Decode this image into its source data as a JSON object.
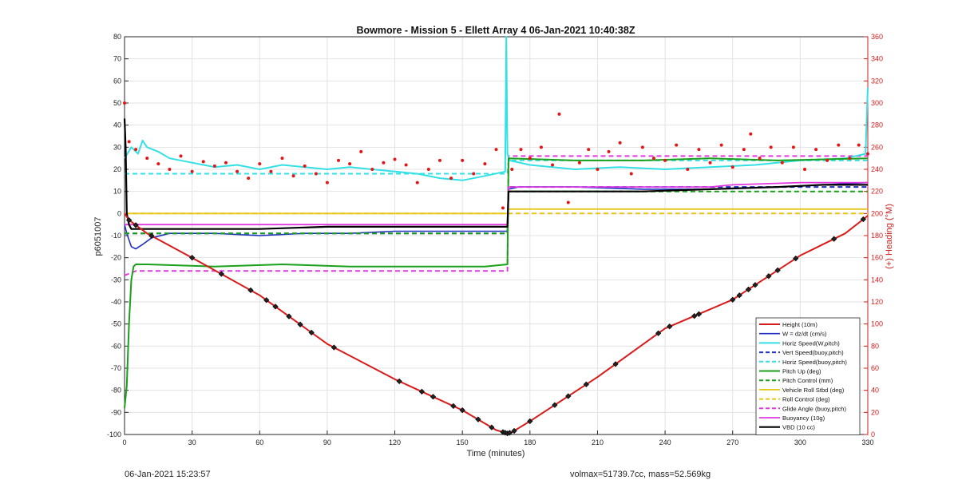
{
  "footer": {
    "left_timestamp": "06-Jan-2021 15:23:57",
    "right_info": "volmax=51739.7cc, mass=52.569kg"
  },
  "colors": {
    "height": "#d81b1b",
    "w": "#1f2fbf",
    "horiz": "#33e0e6",
    "vert_dash": "#1f2fbf",
    "horiz_dash": "#33e0e6",
    "pitch": "#1aa01a",
    "pitch_ctrl": "#1aa01a",
    "roll": "#e6c619",
    "roll_ctrl": "#e6c619",
    "glide": "#e238e2",
    "buoy": "#e238e2",
    "vbd": "#000000",
    "heading": "#e31616",
    "right_axis": "#d01c1c"
  },
  "chart_data": {
    "type": "line",
    "title": "Bowmore - Mission 5 - Ellett Array 4 06-Jan-2021 10:40:38Z",
    "xlabel": "Time (minutes)",
    "ylabel": "p6051007",
    "ylabel_right": "(+) Heading (°M)",
    "xlim": [
      0,
      330
    ],
    "ylim": [
      -100,
      80
    ],
    "ylim_right": [
      0,
      360
    ],
    "xticks": [
      "0",
      "30",
      "60",
      "90",
      "120",
      "150",
      "180",
      "210",
      "240",
      "270",
      "300",
      "330"
    ],
    "yticks": [
      "80",
      "70",
      "60",
      "50",
      "40",
      "30",
      "20",
      "10",
      "0",
      "-10",
      "-20",
      "-30",
      "-40",
      "-50",
      "-60",
      "-70",
      "-80",
      "-90",
      "-100"
    ],
    "yticks_right": [
      "360",
      "340",
      "320",
      "300",
      "280",
      "260",
      "240",
      "220",
      "200",
      "180",
      "160",
      "140",
      "120",
      "100",
      "80",
      "60",
      "40",
      "20",
      "0"
    ],
    "grid": true,
    "legend_position": "bottom-right",
    "legend": [
      "Height (10m)",
      "W = dz/dt (cm/s)",
      "Horiz Speed(W,pitch)",
      "Vert Speed(buoy,pitch)",
      "Horiz Speed(buoy,pitch)",
      "Pitch Up (deg)",
      "Pitch Control (mm)",
      "Vehicle Roll Stbd (deg)",
      "Roll Control (deg)",
      "Glide Angle (buoy,pitch)",
      "Buoyancy (10g)",
      "VBD (10 cc)"
    ],
    "series": [
      {
        "name": "Height (10m)",
        "x": [
          0,
          2,
          10,
          30,
          60,
          90,
          120,
          150,
          165,
          170,
          172,
          180,
          210,
          240,
          270,
          300,
          320,
          330
        ],
        "values": [
          0,
          -3,
          -9,
          -20,
          -37,
          -59,
          -75,
          -89,
          -98,
          -99.5,
          -99,
          -94,
          -74,
          -52,
          -39,
          -19,
          -9,
          -1
        ]
      },
      {
        "name": "W = dz/dt (cm/s)",
        "x": [
          0,
          1,
          3,
          5,
          8,
          12,
          20,
          40,
          60,
          80,
          100,
          120,
          140,
          160,
          170,
          170.5,
          175,
          200,
          230,
          260,
          290,
          310,
          330
        ],
        "values": [
          -5,
          -9,
          -15,
          -16,
          -14,
          -11,
          -9,
          -9,
          -10,
          -9,
          -9,
          -8,
          -8,
          -8,
          -8,
          11,
          12,
          12,
          11,
          11,
          12,
          13,
          14
        ]
      },
      {
        "name": "Horiz Speed(W,pitch)",
        "x": [
          0,
          3,
          6,
          8,
          10,
          15,
          20,
          30,
          40,
          50,
          60,
          70,
          80,
          90,
          100,
          110,
          120,
          130,
          140,
          150,
          160,
          169,
          169.5,
          170,
          171,
          180,
          190,
          200,
          220,
          240,
          260,
          280,
          300,
          320,
          329,
          330
        ],
        "values": [
          25,
          30,
          27,
          33,
          30,
          28,
          25,
          23,
          21,
          22,
          20,
          22,
          21,
          20,
          21,
          20,
          19,
          18,
          16,
          15,
          17,
          19,
          80,
          27,
          24,
          22,
          21,
          20,
          21,
          20,
          21,
          22,
          24,
          25,
          27,
          57
        ]
      },
      {
        "name": "Vert Speed(buoy,pitch)",
        "x": [
          0,
          5,
          30,
          60,
          90,
          120,
          150,
          170,
          170.5,
          200,
          230,
          260,
          290,
          330
        ],
        "values": [
          -9,
          -9,
          -9,
          -9,
          -9,
          -9,
          -9,
          -9,
          12,
          12,
          12,
          12,
          12,
          12
        ]
      },
      {
        "name": "Horiz Speed(buoy,pitch)",
        "x": [
          0,
          30,
          60,
          90,
          120,
          150,
          170,
          170.5,
          200,
          230,
          260,
          290,
          330
        ],
        "values": [
          18,
          18,
          18,
          18,
          18,
          18,
          18,
          24,
          24,
          24,
          24,
          24,
          24
        ]
      },
      {
        "name": "Pitch Up (deg)",
        "x": [
          0,
          1,
          2,
          3,
          4,
          5,
          10,
          40,
          70,
          100,
          130,
          160,
          170,
          170.5,
          200,
          230,
          260,
          290,
          330
        ],
        "values": [
          -88,
          -78,
          -50,
          -30,
          -24,
          -23,
          -23,
          -24,
          -23,
          -24,
          -24,
          -24,
          -23,
          25,
          24,
          24,
          25,
          24,
          25
        ]
      },
      {
        "name": "Pitch Control (mm)",
        "x": [
          0,
          30,
          60,
          90,
          120,
          150,
          170,
          170.5,
          200,
          230,
          260,
          290,
          330
        ],
        "values": [
          -9,
          -9,
          -9,
          -9,
          -9,
          -9,
          -9,
          10,
          10,
          10,
          10,
          10,
          10
        ]
      },
      {
        "name": "Vehicle Roll Stbd (deg)",
        "x": [
          0,
          5,
          30,
          60,
          90,
          120,
          150,
          170,
          170.5,
          200,
          230,
          260,
          290,
          330
        ],
        "values": [
          0,
          0,
          0,
          0,
          0,
          0,
          0,
          0,
          2,
          2,
          2,
          2,
          2,
          2
        ]
      },
      {
        "name": "Roll Control (deg)",
        "x": [
          0,
          30,
          60,
          90,
          120,
          150,
          170,
          170.5,
          200,
          230,
          260,
          290,
          330
        ],
        "values": [
          0,
          0,
          0,
          0,
          0,
          0,
          0,
          0,
          0,
          0,
          0,
          0,
          0
        ]
      },
      {
        "name": "Glide Angle (buoy,pitch)",
        "x": [
          0,
          5,
          30,
          60,
          90,
          120,
          150,
          170,
          170.5,
          200,
          230,
          260,
          290,
          330
        ],
        "values": [
          -28,
          -26,
          -26,
          -26,
          -26,
          -26,
          -26,
          -26,
          26,
          26,
          26,
          26,
          26,
          26
        ]
      },
      {
        "name": "Buoyancy (10g)",
        "x": [
          0,
          30,
          60,
          90,
          120,
          150,
          169,
          170,
          170.5,
          200,
          230,
          260,
          270,
          300,
          330
        ],
        "values": [
          -5,
          -5,
          -5,
          -5,
          -5,
          -5,
          -5,
          -5,
          12,
          12,
          12,
          12,
          13,
          14,
          14
        ]
      },
      {
        "name": "VBD (10 cc)",
        "x": [
          0,
          0.5,
          1,
          2,
          3,
          5,
          30,
          60,
          90,
          120,
          150,
          170,
          170.5,
          200,
          230,
          260,
          290,
          310,
          330
        ],
        "values": [
          43,
          30,
          0,
          -5,
          -7,
          -7,
          -7,
          -7,
          -6,
          -6,
          -6,
          -6,
          10,
          10,
          10,
          11,
          12,
          13,
          13
        ]
      }
    ],
    "heading_points": {
      "axis": "right",
      "note": "",
      "x": [
        0,
        2,
        5,
        10,
        15,
        20,
        25,
        30,
        35,
        40,
        45,
        50,
        55,
        60,
        65,
        70,
        75,
        80,
        85,
        90,
        95,
        100,
        105,
        110,
        115,
        120,
        125,
        130,
        135,
        140,
        145,
        150,
        155,
        160,
        165,
        168,
        172,
        176,
        180,
        185,
        190,
        193,
        197,
        202,
        206,
        210,
        215,
        220,
        225,
        230,
        235,
        240,
        245,
        250,
        255,
        260,
        265,
        270,
        275,
        278,
        282,
        287,
        292,
        297,
        302,
        307,
        312,
        317,
        322,
        326,
        330
      ],
      "values": [
        300,
        265,
        258,
        250,
        245,
        240,
        252,
        238,
        247,
        243,
        246,
        238,
        232,
        245,
        238,
        250,
        234,
        243,
        236,
        228,
        248,
        245,
        256,
        240,
        246,
        249,
        244,
        228,
        240,
        248,
        232,
        248,
        236,
        245,
        258,
        205,
        240,
        258,
        250,
        260,
        244,
        290,
        210,
        246,
        258,
        240,
        256,
        264,
        236,
        260,
        250,
        248,
        262,
        240,
        258,
        246,
        262,
        242,
        258,
        272,
        250,
        260,
        246,
        260,
        240,
        258,
        248,
        262,
        250,
        262,
        254
      ]
    },
    "height_markers_x": [
      2,
      5,
      12,
      30,
      43,
      56,
      63,
      67,
      73,
      78,
      83,
      93,
      122,
      132,
      137,
      146,
      150,
      157,
      163,
      168,
      169,
      170,
      171,
      173,
      180,
      191,
      197,
      205,
      218,
      237,
      242,
      253,
      255,
      270,
      273,
      277,
      280,
      286,
      290,
      298,
      315,
      328
    ]
  }
}
